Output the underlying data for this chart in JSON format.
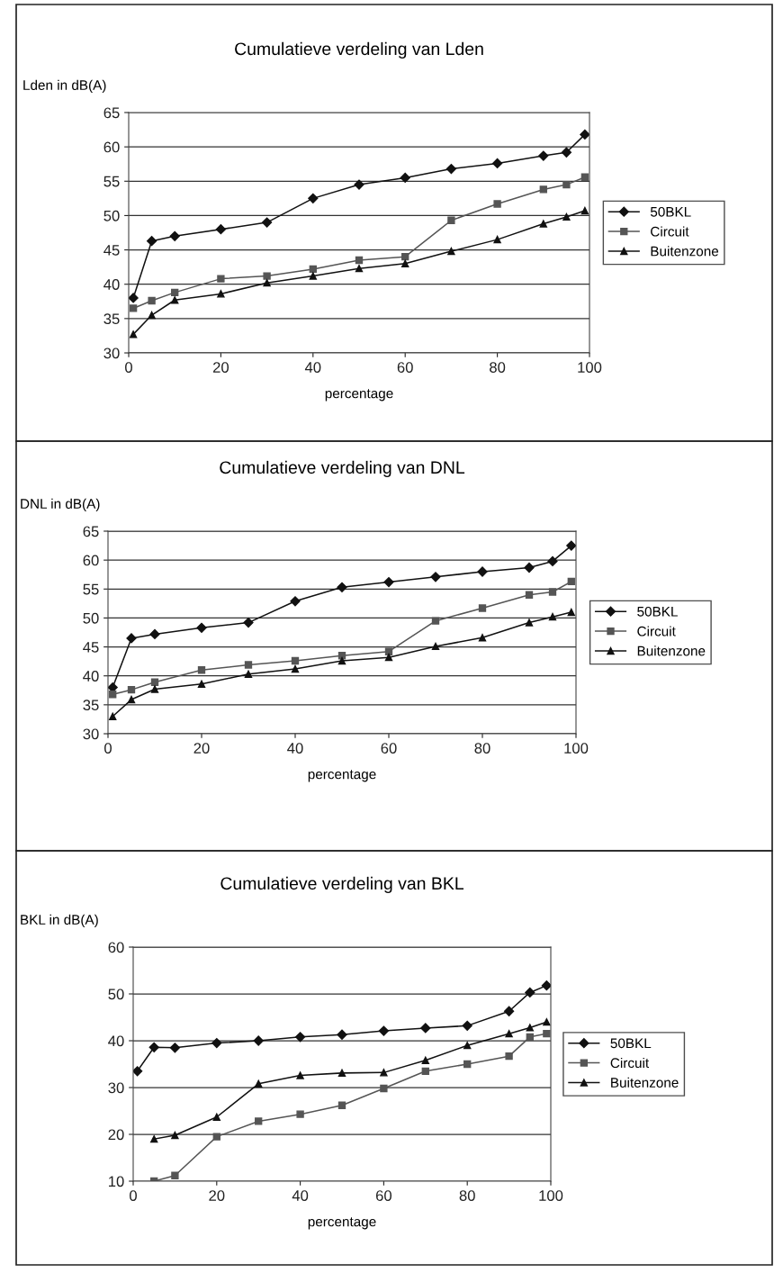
{
  "chart_data": [
    {
      "type": "line",
      "title": "Cumulatieve verdeling van Lden",
      "xlabel": "percentage",
      "ylabel": "Lden in dB(A)",
      "x": [
        1,
        5,
        10,
        20,
        30,
        40,
        50,
        60,
        70,
        80,
        90,
        95,
        99
      ],
      "series": [
        {
          "name": "50BKL",
          "color": "#111111",
          "marker": "diamond",
          "values": [
            38,
            46.3,
            47,
            48,
            49,
            52.5,
            54.5,
            55.5,
            56.8,
            57.6,
            58.7,
            59.2,
            61.8
          ]
        },
        {
          "name": "Circuit",
          "color": "#555555",
          "marker": "square",
          "values": [
            36.5,
            37.6,
            38.8,
            40.8,
            41.2,
            42.2,
            43.5,
            44,
            49.3,
            51.7,
            53.8,
            54.5,
            55.6
          ]
        },
        {
          "name": "Buitenzone",
          "color": "#111111",
          "marker": "triangle",
          "values": [
            32.7,
            35.5,
            37.7,
            38.6,
            40.2,
            41.2,
            42.3,
            43,
            44.8,
            46.5,
            48.8,
            49.8,
            50.7
          ]
        }
      ],
      "xlim": [
        0,
        100
      ],
      "xticks": [
        0,
        20,
        40,
        60,
        80,
        100
      ],
      "ylim": [
        30,
        65
      ],
      "yticks": [
        30,
        35,
        40,
        45,
        50,
        55,
        60,
        65
      ],
      "grid": "y",
      "legend": "right"
    },
    {
      "type": "line",
      "title": "Cumulatieve verdeling van DNL",
      "xlabel": "percentage",
      "ylabel": "DNL in dB(A)",
      "x": [
        1,
        5,
        10,
        20,
        30,
        40,
        50,
        60,
        70,
        80,
        90,
        95,
        99
      ],
      "series": [
        {
          "name": "50BKL",
          "color": "#111111",
          "marker": "diamond",
          "values": [
            38,
            46.5,
            47.2,
            48.3,
            49.2,
            52.9,
            55.3,
            56.2,
            57.1,
            58,
            58.7,
            59.8,
            62.5
          ]
        },
        {
          "name": "Circuit",
          "color": "#555555",
          "marker": "square",
          "values": [
            36.8,
            37.6,
            38.9,
            41,
            41.9,
            42.6,
            43.5,
            44.2,
            49.5,
            51.7,
            54,
            54.5,
            56.3
          ]
        },
        {
          "name": "Buitenzone",
          "color": "#111111",
          "marker": "triangle",
          "values": [
            33,
            35.9,
            37.7,
            38.6,
            40.3,
            41.2,
            42.6,
            43.2,
            45.1,
            46.6,
            49.2,
            50.2,
            51
          ]
        }
      ],
      "xlim": [
        0,
        100
      ],
      "xticks": [
        0,
        20,
        40,
        60,
        80,
        100
      ],
      "ylim": [
        30,
        65
      ],
      "yticks": [
        30,
        35,
        40,
        45,
        50,
        55,
        60,
        65
      ],
      "grid": "y",
      "legend": "right"
    },
    {
      "type": "line",
      "title": "Cumulatieve verdeling van BKL",
      "xlabel": "percentage",
      "ylabel": "BKL in dB(A)",
      "x": [
        1,
        5,
        10,
        20,
        30,
        40,
        50,
        60,
        70,
        80,
        90,
        95,
        99
      ],
      "series": [
        {
          "name": "50BKL",
          "color": "#111111",
          "marker": "diamond",
          "values": [
            33.5,
            38.6,
            38.5,
            39.5,
            40,
            40.8,
            41.3,
            42.1,
            42.7,
            43.2,
            46.3,
            50.3,
            51.8
          ]
        },
        {
          "name": "Circuit",
          "color": "#555555",
          "marker": "square",
          "values": [
            null,
            10,
            11.2,
            19.5,
            22.8,
            24.3,
            26.2,
            29.8,
            33.5,
            35,
            36.7,
            40.8,
            41.5
          ]
        },
        {
          "name": "Buitenzone",
          "color": "#111111",
          "marker": "triangle",
          "values": [
            null,
            19,
            19.8,
            23.7,
            30.8,
            32.6,
            33.1,
            33.2,
            35.8,
            39,
            41.5,
            42.8,
            44
          ]
        }
      ],
      "xlim": [
        0,
        100
      ],
      "xticks": [
        0,
        20,
        40,
        60,
        80,
        100
      ],
      "ylim": [
        10,
        60
      ],
      "yticks": [
        10,
        20,
        30,
        40,
        50,
        60
      ],
      "grid": "y",
      "legend": "right"
    }
  ]
}
